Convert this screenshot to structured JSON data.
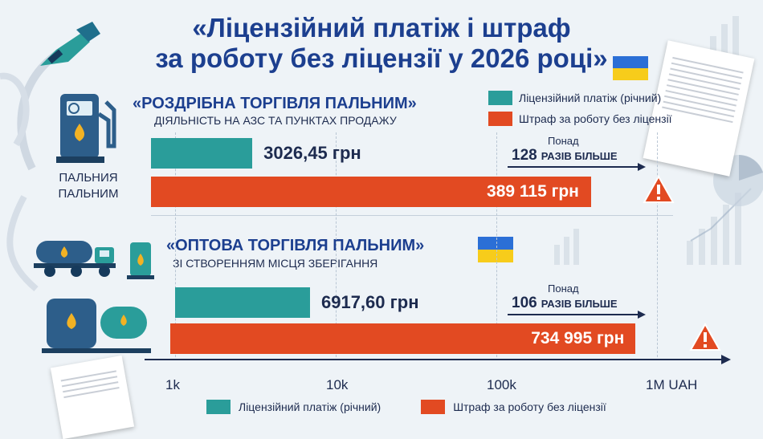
{
  "title": {
    "line1": "«Ліцензійний платіж і штраф",
    "line2": "за роботу без ліцензії у 2026 році»"
  },
  "colors": {
    "license": "#2a9d9a",
    "fine": "#e24a22",
    "title": "#1c3f8f",
    "background": "#eef3f7"
  },
  "legend": {
    "license": "Ліцензійний платіж (річний)",
    "fine": "Штраф за роботу без ліцензії"
  },
  "sections": [
    {
      "title": "«РОЗДРІБНА ТОРГІВЛЯ ПАЛЬНИМ»",
      "subtitle": "ДІЯЛЬНІСТЬ НА АЗС ТА ПУНКТАХ ПРОДАЖУ",
      "icon_label_1": "ПАЛЬНИЯ",
      "icon_label_2": "ПАЛЬНИМ",
      "license_label": "3026,45 грн",
      "fine_label": "389 115 грн",
      "ratio_prefix": "Понад",
      "ratio_number": "128",
      "ratio_text": "РАЗІВ БІЛЬШЕ"
    },
    {
      "title": "«ОПТОВА ТОРГІВЛЯ ПАЛЬНИМ»",
      "subtitle": "ЗІ СТВОРЕННЯМ МІСЦЯ ЗБЕРІГАННЯ",
      "license_label": "6917,60 грн",
      "fine_label": "734 995 грн",
      "ratio_prefix": "Понад",
      "ratio_number": "106",
      "ratio_text": "РАЗІВ БІЛЬШЕ"
    }
  ],
  "axis": {
    "ticks": [
      "1k",
      "10k",
      "100k",
      "1M UAH"
    ]
  },
  "chart_data": {
    "type": "bar",
    "orientation": "horizontal",
    "scale": "log",
    "xlim": [
      1000,
      1000000
    ],
    "categories": [
      "«РОЗДРІБНА ТОРГІВЛЯ ПАЛЬНИМ»",
      "«ОПТОВА ТОРГІВЛЯ ПАЛЬНИМ»"
    ],
    "series": [
      {
        "name": "Ліцензійний платіж (річний)",
        "values": [
          3026.45,
          6917.6
        ]
      },
      {
        "name": "Штраф за роботу без ліцензії",
        "values": [
          389115,
          734995
        ]
      }
    ],
    "x_ticks": [
      1000,
      10000,
      100000,
      1000000
    ],
    "legend_position": "top-right and bottom"
  }
}
